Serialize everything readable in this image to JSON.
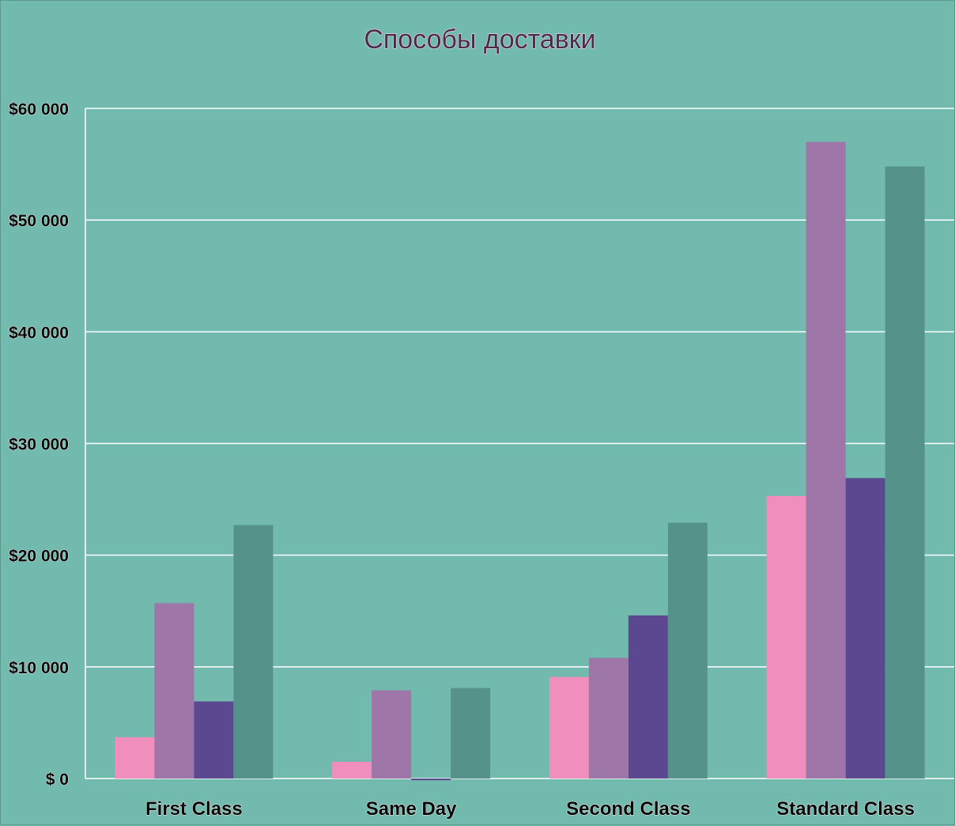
{
  "chart_data": {
    "type": "bar",
    "title": "Способы доставки",
    "xlabel": "",
    "ylabel": "",
    "categories": [
      "First Class",
      "Same Day",
      "Second Class",
      "Standard Class"
    ],
    "series": [
      {
        "color": "#f08ebd",
        "values": [
          3700,
          1500,
          9100,
          25300
        ]
      },
      {
        "color": "#9e77a8",
        "values": [
          15700,
          7900,
          10800,
          57000
        ]
      },
      {
        "color": "#5b4890",
        "values": [
          6900,
          -150,
          14600,
          26900
        ]
      },
      {
        "color": "#55938a",
        "values": [
          22700,
          8100,
          22900,
          54800
        ]
      }
    ],
    "ylim": [
      0,
      60000
    ],
    "yticks": [
      0,
      10000,
      20000,
      30000,
      40000,
      50000,
      60000
    ],
    "ytick_labels": [
      "$ 0",
      "$10 000",
      "$20 000",
      "$30 000",
      "$40 000",
      "$50 000",
      "$60 000"
    ],
    "grid": true,
    "legend": "none",
    "background": "#72b9ae",
    "gridline_color": "#ffffff"
  }
}
